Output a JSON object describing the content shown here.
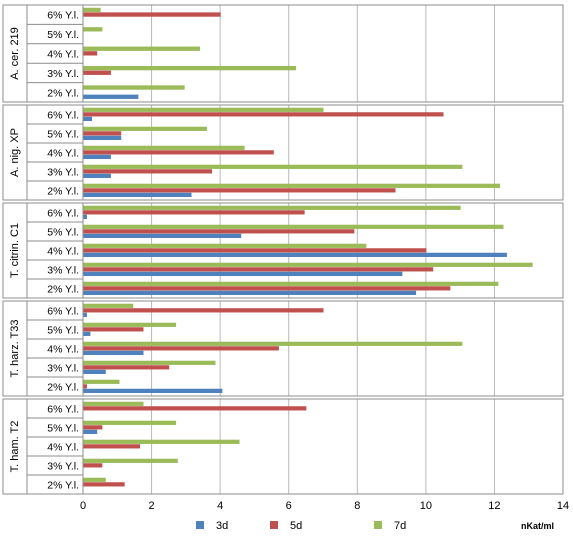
{
  "chart_data": {
    "type": "bar",
    "orientation": "horizontal",
    "grouped_by_panel": true,
    "xlim": [
      0,
      14
    ],
    "x_ticks": [
      0,
      2,
      4,
      6,
      8,
      10,
      12,
      14
    ],
    "x_unit": "nKat/ml",
    "grid": "vertical",
    "legend": "bottom",
    "series": [
      {
        "name": "3d",
        "color": "#4f81bd"
      },
      {
        "name": "5d",
        "color": "#c0504d"
      },
      {
        "name": "7d",
        "color": "#9bbb59"
      }
    ],
    "groups": [
      {
        "name": "A. cer. 219",
        "categories": [
          "6% Y.l.",
          "5% Y.l.",
          "4% Y.l.",
          "3% Y.l.",
          "2% Y.l."
        ],
        "values": {
          "3d": [
            0.0,
            0.0,
            0.0,
            0.0,
            1.6
          ],
          "5d": [
            4.0,
            0.0,
            0.4,
            0.8,
            0.0
          ],
          "7d": [
            0.5,
            0.55,
            3.4,
            6.2,
            2.95
          ]
        }
      },
      {
        "name": "A. nig. XP",
        "categories": [
          "6% Y.l.",
          "5% Y.l.",
          "4% Y.l.",
          "3% Y.l.",
          "2% Y.l."
        ],
        "values": {
          "3d": [
            0.25,
            1.1,
            0.8,
            0.8,
            3.15
          ],
          "5d": [
            10.5,
            1.1,
            5.55,
            3.75,
            9.1
          ],
          "7d": [
            7.0,
            3.6,
            4.7,
            11.05,
            12.15
          ]
        }
      },
      {
        "name": "T. citrin. C1",
        "categories": [
          "6% Y.l.",
          "5% Y.l.",
          "4% Y.l.",
          "3% Y.l.",
          "2% Y.l."
        ],
        "values": {
          "3d": [
            0.1,
            4.6,
            12.35,
            9.3,
            9.7
          ],
          "5d": [
            6.45,
            7.9,
            10.0,
            10.2,
            10.7
          ],
          "7d": [
            11.0,
            12.25,
            8.25,
            13.1,
            12.1
          ]
        }
      },
      {
        "name": "T. harz. T33",
        "categories": [
          "6% Y.l.",
          "5% Y.l.",
          "4% Y.l.",
          "3% Y.l.",
          "2% Y.l."
        ],
        "values": {
          "3d": [
            0.1,
            0.2,
            1.75,
            0.65,
            4.05
          ],
          "5d": [
            7.0,
            1.75,
            5.7,
            2.5,
            0.1
          ],
          "7d": [
            1.45,
            2.7,
            11.05,
            3.85,
            1.05
          ]
        }
      },
      {
        "name": "T. ham. T2",
        "categories": [
          "6% Y.l.",
          "5% Y.l.",
          "4% Y.l.",
          "3% Y.l.",
          "2% Y.l."
        ],
        "values": {
          "3d": [
            0.0,
            0.4,
            0.0,
            0.0,
            0.0
          ],
          "5d": [
            6.5,
            0.55,
            1.65,
            0.55,
            1.2
          ],
          "7d": [
            1.75,
            2.7,
            4.55,
            2.75,
            0.65
          ]
        }
      }
    ]
  }
}
